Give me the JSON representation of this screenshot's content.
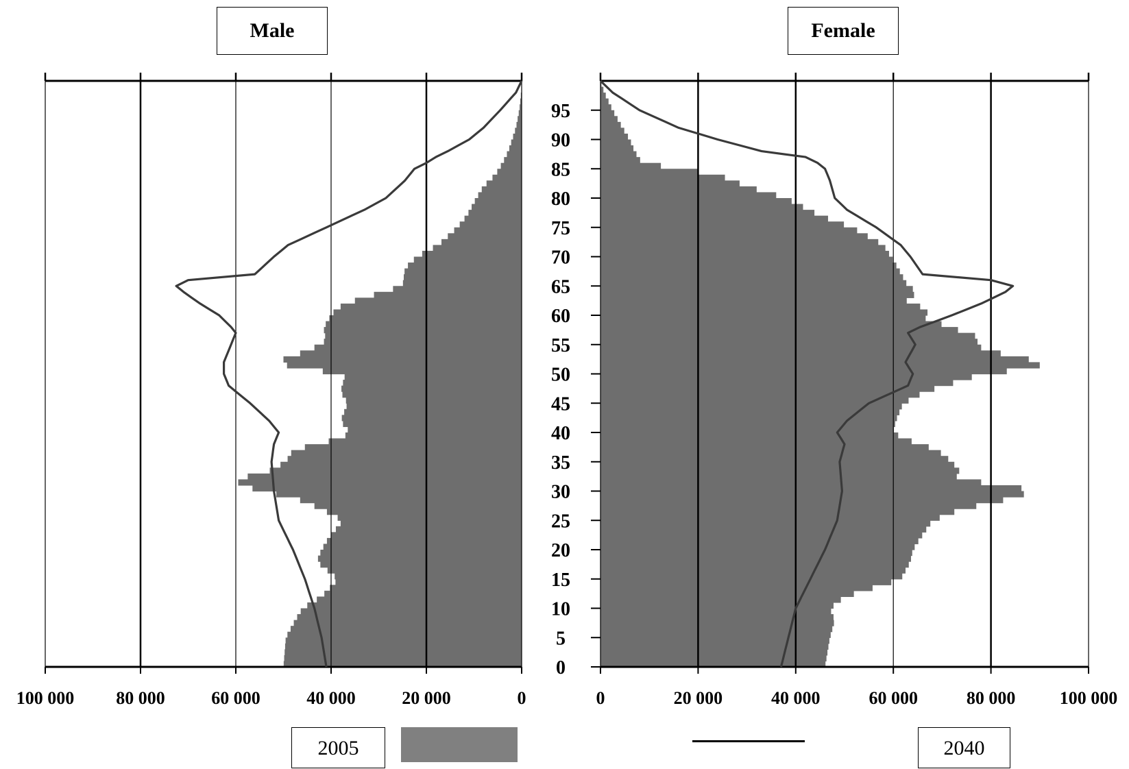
{
  "chart_data": [
    {
      "type": "bar",
      "orientation": "horizontal-left",
      "title": "Male",
      "xlim": [
        0,
        100000
      ],
      "x_ticks": [
        "100 000",
        "80 000",
        "60 000",
        "40 000",
        "20 000",
        "0"
      ],
      "y_ticks": [
        "0",
        "5",
        "10",
        "15",
        "20",
        "25",
        "30",
        "35",
        "40",
        "45",
        "50",
        "55",
        "60",
        "65",
        "70",
        "75",
        "80",
        "85",
        "90",
        "95"
      ],
      "age_range": [
        0,
        100
      ],
      "grid": "vertical",
      "series": [
        {
          "name": "2005",
          "kind": "bars",
          "color": "#6e6e6e",
          "ages": [
            0,
            5,
            8,
            10,
            12,
            15,
            18,
            20,
            22,
            25,
            27,
            28,
            29,
            30,
            31,
            32,
            33,
            35,
            37,
            39,
            40,
            42,
            45,
            47,
            50,
            51,
            52,
            53,
            55,
            56,
            57,
            58,
            60,
            61,
            62,
            64,
            65,
            68,
            70,
            72,
            75,
            77,
            80,
            82,
            84,
            86,
            88,
            90,
            92,
            95,
            98,
            100
          ],
          "values": [
            50000,
            49500,
            47500,
            46000,
            42000,
            38500,
            43000,
            42000,
            40500,
            37500,
            42000,
            45000,
            48000,
            55000,
            58000,
            61000,
            54000,
            49500,
            48000,
            38000,
            36000,
            38000,
            36500,
            38000,
            37000,
            46500,
            52000,
            48000,
            42000,
            41000,
            41500,
            41500,
            40000,
            39000,
            37000,
            29000,
            25000,
            24500,
            22000,
            17500,
            13500,
            11500,
            9500,
            8000,
            5500,
            4000,
            2800,
            2000,
            1200,
            500,
            100,
            0
          ]
        },
        {
          "name": "2040",
          "kind": "line",
          "color": "#3a3a3a",
          "ages": [
            0,
            5,
            10,
            15,
            20,
            25,
            30,
            35,
            38,
            40,
            42,
            45,
            48,
            50,
            52,
            55,
            57,
            58,
            60,
            62,
            64,
            65,
            66,
            67,
            70,
            72,
            75,
            78,
            80,
            83,
            85,
            86,
            87,
            88,
            90,
            92,
            95,
            98,
            100
          ],
          "values": [
            41000,
            42000,
            43500,
            45500,
            48000,
            51000,
            52000,
            52500,
            52000,
            51000,
            53000,
            57000,
            61500,
            62500,
            62500,
            61000,
            60000,
            61000,
            63500,
            67500,
            71000,
            72500,
            70000,
            56000,
            52000,
            49000,
            41000,
            33000,
            28500,
            24500,
            22500,
            20000,
            18000,
            15500,
            11000,
            8000,
            4500,
            1200,
            0
          ]
        }
      ]
    },
    {
      "type": "bar",
      "orientation": "horizontal-right",
      "title": "Female",
      "xlim": [
        0,
        100000
      ],
      "x_ticks": [
        "0",
        "20 000",
        "40 000",
        "60 000",
        "80 000",
        "100 000"
      ],
      "y_ticks": [
        "0",
        "5",
        "10",
        "15",
        "20",
        "25",
        "30",
        "35",
        "40",
        "45",
        "50",
        "55",
        "60",
        "65",
        "70",
        "75",
        "80",
        "85",
        "90",
        "95"
      ],
      "age_range": [
        0,
        100
      ],
      "grid": "vertical",
      "series": [
        {
          "name": "2005",
          "kind": "bars",
          "color": "#6e6e6e",
          "ages": [
            0,
            5,
            8,
            10,
            12,
            15,
            18,
            20,
            22,
            25,
            27,
            28,
            29,
            30,
            31,
            32,
            33,
            35,
            37,
            39,
            40,
            42,
            45,
            47,
            50,
            51,
            52,
            53,
            55,
            56,
            57,
            58,
            60,
            61,
            62,
            64,
            65,
            68,
            70,
            72,
            75,
            77,
            80,
            82,
            84,
            86,
            88,
            90,
            92,
            95,
            98,
            100
          ],
          "values": [
            46000,
            47000,
            48000,
            47000,
            50000,
            61500,
            63500,
            64000,
            65500,
            68000,
            74000,
            80000,
            85000,
            88500,
            84000,
            72000,
            74000,
            72000,
            69000,
            62000,
            60000,
            60500,
            62000,
            66500,
            78000,
            88500,
            91500,
            84000,
            76000,
            78500,
            75000,
            71500,
            65000,
            69000,
            62000,
            65000,
            63000,
            61000,
            59500,
            58000,
            51500,
            45000,
            38000,
            30000,
            24000,
            8500,
            7000,
            6000,
            4500,
            2500,
            800,
            0
          ]
        },
        {
          "name": "2040",
          "kind": "line",
          "color": "#3a3a3a",
          "ages": [
            0,
            5,
            10,
            15,
            20,
            25,
            30,
            35,
            38,
            40,
            42,
            45,
            48,
            50,
            52,
            55,
            57,
            58,
            60,
            62,
            64,
            65,
            66,
            67,
            70,
            72,
            75,
            78,
            80,
            83,
            85,
            86,
            87,
            88,
            90,
            92,
            95,
            98,
            100
          ],
          "values": [
            37000,
            38500,
            40000,
            43000,
            46000,
            48500,
            49500,
            49000,
            50000,
            48500,
            50500,
            55000,
            63000,
            64000,
            62500,
            64500,
            63000,
            65500,
            72000,
            78000,
            83000,
            84500,
            80000,
            66000,
            63500,
            61500,
            56500,
            50500,
            48000,
            47000,
            46000,
            44500,
            42000,
            33000,
            24000,
            16000,
            8000,
            2500,
            0
          ]
        }
      ]
    }
  ],
  "panels": {
    "male_title": "Male",
    "female_title": "Female"
  },
  "legend": {
    "bars_label": "2005",
    "line_label": "2040",
    "bars_color": "#808080",
    "line_color": "#000000"
  }
}
